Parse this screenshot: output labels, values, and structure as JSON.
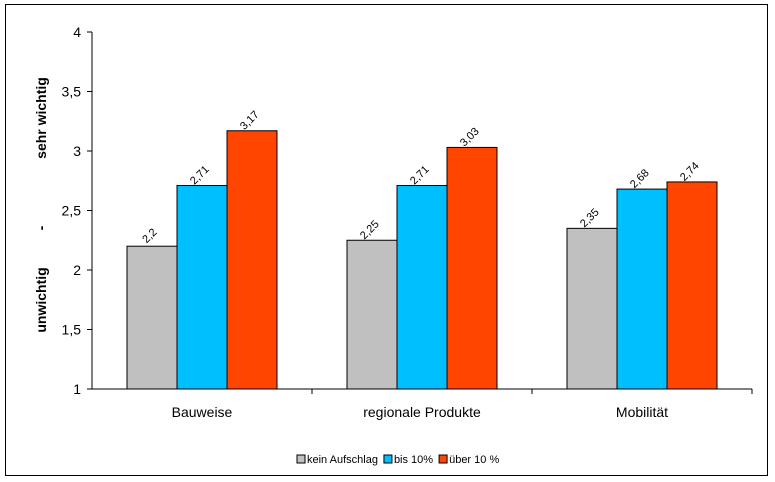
{
  "chart_data": {
    "type": "bar",
    "categories": [
      "Bauweise",
      "regionale Produkte",
      "Mobilität"
    ],
    "series": [
      {
        "name": "kein Aufschlag",
        "values": [
          2.2,
          2.25,
          2.35
        ],
        "labels": [
          "2,2",
          "2,25",
          "2,35"
        ],
        "color": "#C0C0C0"
      },
      {
        "name": "bis 10%",
        "values": [
          2.71,
          2.71,
          2.68
        ],
        "labels": [
          "2,71",
          "2,71",
          "2,68"
        ],
        "color": "#00BFFF"
      },
      {
        "name": "über 10 %",
        "values": [
          3.17,
          3.03,
          2.74
        ],
        "labels": [
          "3,17",
          "3,03",
          "2,74"
        ],
        "color": "#FF4500"
      }
    ],
    "ylim": [
      1,
      4
    ],
    "yticks": [
      1,
      1.5,
      2,
      2.5,
      3,
      3.5,
      4
    ],
    "ytick_labels": [
      "1",
      "1,5",
      "2",
      "2,5",
      "3",
      "3,5",
      "4"
    ],
    "ylabel_parts": [
      "unwichtig",
      "-",
      "sehr wichtig"
    ],
    "grid": false,
    "legend": "bottom-center"
  }
}
